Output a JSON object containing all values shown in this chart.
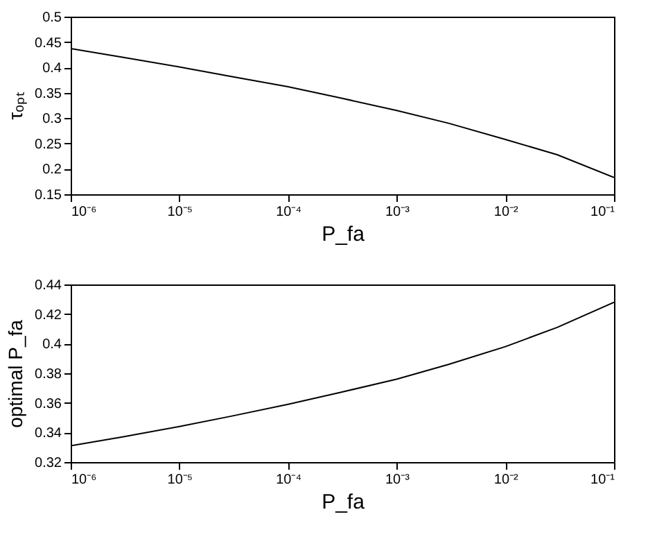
{
  "chart_data": [
    {
      "type": "line",
      "xlabel": "P_fa",
      "ylabel": "τₒₚₜ",
      "log": "x",
      "grid": false,
      "line_style": "solid",
      "marker": "none",
      "x": [
        1e-06,
        3e-06,
        1e-05,
        3e-05,
        0.0001,
        0.0003,
        0.001,
        0.003,
        0.01,
        0.03,
        0.1
      ],
      "series": [
        {
          "color": "#000000",
          "values": [
            0.437,
            0.42,
            0.401,
            0.382,
            0.362,
            0.34,
            0.315,
            0.29,
            0.258,
            0.228,
            0.183
          ]
        }
      ],
      "xlim": [
        1e-06,
        0.1
      ],
      "xticks": [
        {
          "value": 1e-06,
          "label": "10⁻⁶"
        },
        {
          "value": 1e-05,
          "label": "10⁻⁵"
        },
        {
          "value": 0.0001,
          "label": "10⁻⁴"
        },
        {
          "value": 0.001,
          "label": "10⁻³"
        },
        {
          "value": 0.01,
          "label": "10⁻²"
        },
        {
          "value": 0.1,
          "label": "10⁻¹"
        }
      ],
      "ylim": [
        0.15,
        0.5
      ],
      "yticks": [
        0.15,
        0.2,
        0.25,
        0.3,
        0.35,
        0.4,
        0.45,
        0.5
      ]
    },
    {
      "type": "line",
      "xlabel": "P_fa",
      "ylabel": "optimal P_fa",
      "log": "x",
      "grid": false,
      "line_style": "solid",
      "marker": "none",
      "x": [
        1e-06,
        3e-06,
        1e-05,
        3e-05,
        0.0001,
        0.0003,
        0.001,
        0.003,
        0.01,
        0.03,
        0.1
      ],
      "series": [
        {
          "color": "#000000",
          "values": [
            0.331,
            0.337,
            0.344,
            0.351,
            0.359,
            0.367,
            0.376,
            0.386,
            0.398,
            0.411,
            0.428
          ]
        }
      ],
      "xlim": [
        1e-06,
        0.1
      ],
      "xticks": [
        {
          "value": 1e-06,
          "label": "10⁻⁶"
        },
        {
          "value": 1e-05,
          "label": "10⁻⁵"
        },
        {
          "value": 0.0001,
          "label": "10⁻⁴"
        },
        {
          "value": 0.001,
          "label": "10⁻³"
        },
        {
          "value": 0.01,
          "label": "10⁻²"
        },
        {
          "value": 0.1,
          "label": "10⁻¹"
        }
      ],
      "ylim": [
        0.32,
        0.44
      ],
      "yticks": [
        0.32,
        0.34,
        0.36,
        0.38,
        0.4,
        0.42,
        0.44
      ]
    }
  ]
}
